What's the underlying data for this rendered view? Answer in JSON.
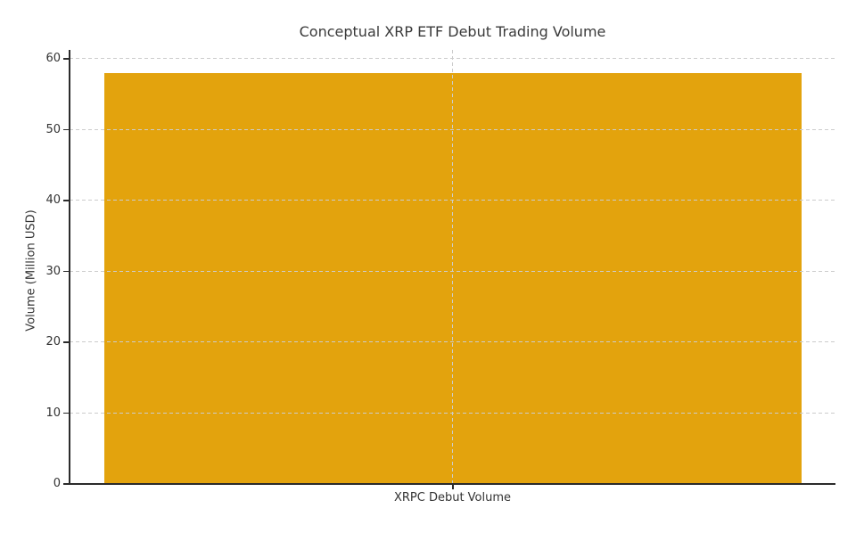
{
  "chart_data": {
    "type": "bar",
    "title": "Conceptual XRP ETF Debut Trading Volume",
    "categories": [
      "XRPC Debut Volume"
    ],
    "values": [
      58
    ],
    "xlabel": "",
    "ylabel": "Volume (Million USD)",
    "ylim": [
      0,
      60
    ],
    "yticks": [
      0,
      10,
      20,
      30,
      40,
      50,
      60
    ],
    "grid": "dashed light-gray, horizontal at each y tick plus vertical at category center, drawn over bar",
    "legend": "none",
    "bar_color": "#E3A30D",
    "spine_color": "#2b2b2b",
    "text_color": "#333333",
    "background_color": "#ffffff"
  }
}
